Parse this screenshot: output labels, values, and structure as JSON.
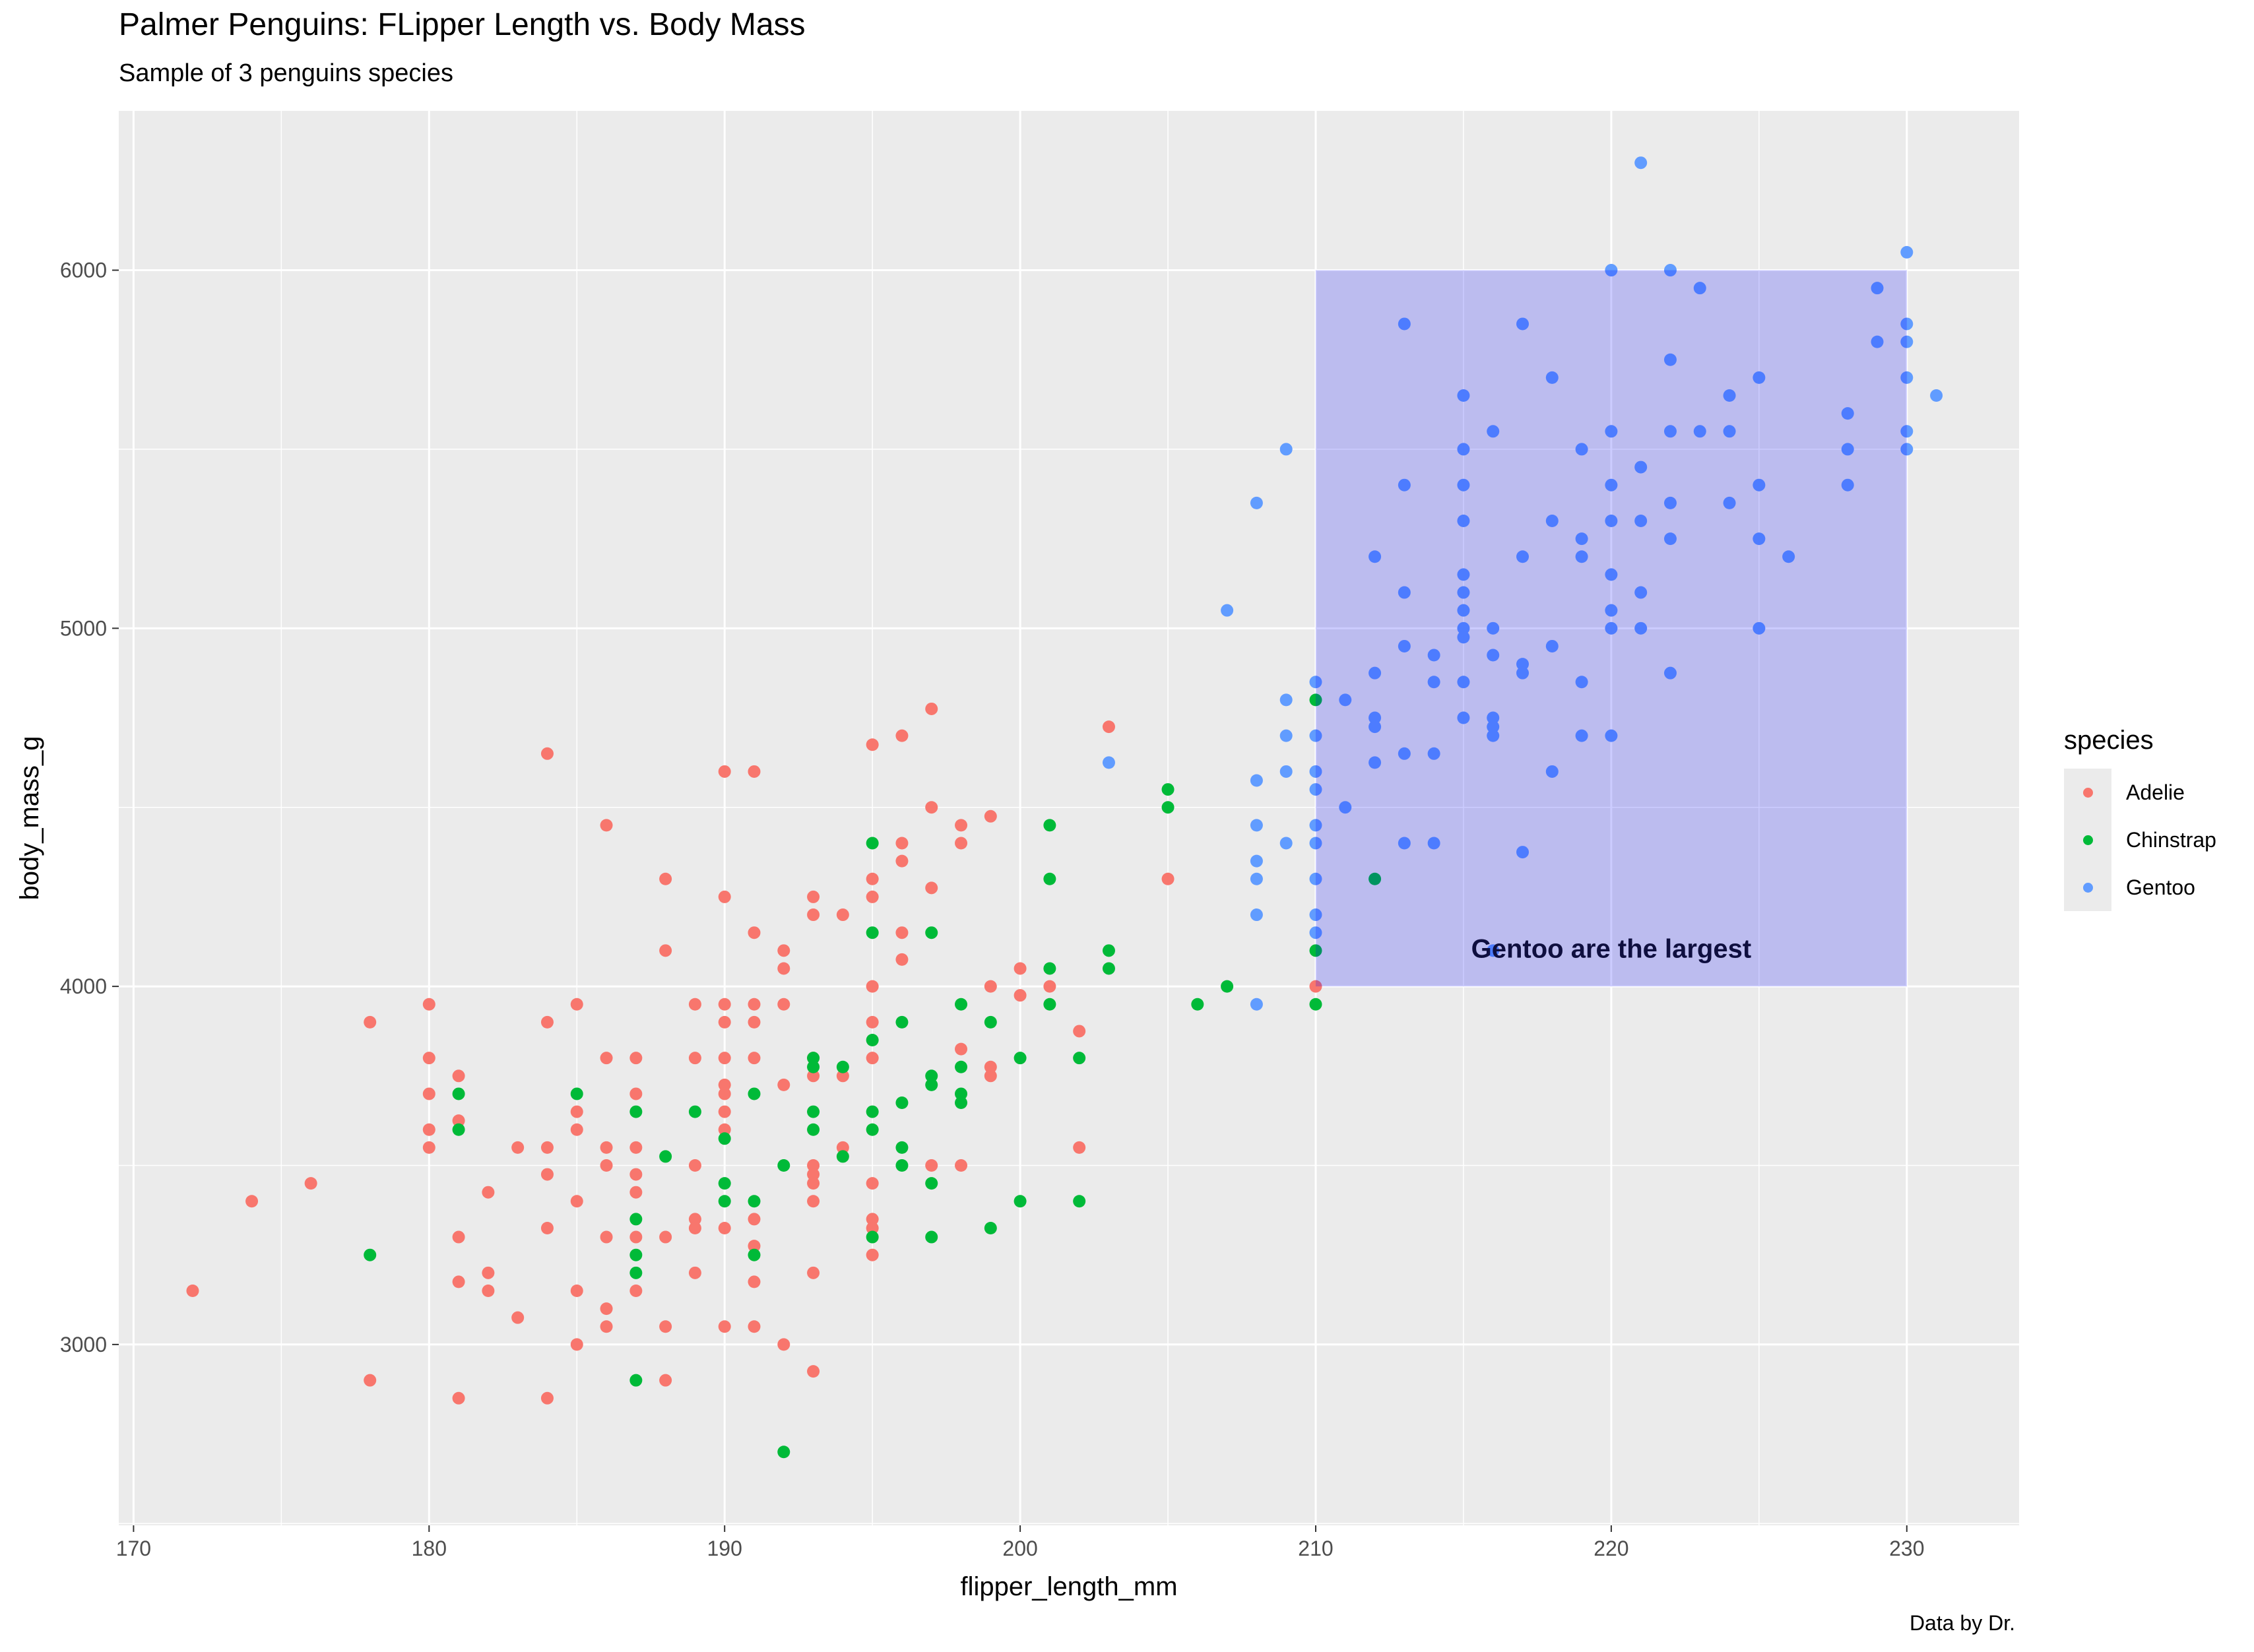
{
  "chart_data": {
    "type": "scatter",
    "title": "Palmer Penguins: FLipper Length vs. Body Mass",
    "subtitle": "Sample of 3 penguins species",
    "caption": "Data by Dr.",
    "xlabel": "flipper_length_mm",
    "ylabel": "body_mass_g",
    "xlim": [
      169.5,
      233.8
    ],
    "ylim": [
      2495,
      6445
    ],
    "x_ticks": [
      170,
      180,
      190,
      200,
      210,
      220,
      230
    ],
    "y_ticks": [
      3000,
      4000,
      5000,
      6000
    ],
    "grid": true,
    "legend": {
      "title": "species",
      "position": "right"
    },
    "annotation": {
      "text": "Gentoo are the largest",
      "x": 220,
      "y": 4100,
      "rect": {
        "x": [
          210,
          230
        ],
        "y": [
          4000,
          6000
        ],
        "fill": "#0000ff",
        "alpha": 0.2
      }
    },
    "series": [
      {
        "name": "Adelie",
        "color": "#F8766D",
        "points": [
          [
            172,
            3150
          ],
          [
            174,
            3400
          ],
          [
            176,
            3450
          ],
          [
            178,
            3900
          ],
          [
            178,
            2900
          ],
          [
            180,
            3950
          ],
          [
            180,
            3800
          ],
          [
            180,
            3700
          ],
          [
            180,
            3600
          ],
          [
            180,
            3550
          ],
          [
            181,
            3750
          ],
          [
            181,
            3625
          ],
          [
            181,
            3300
          ],
          [
            181,
            3175
          ],
          [
            181,
            2850
          ],
          [
            182,
            3425
          ],
          [
            182,
            3200
          ],
          [
            182,
            3150
          ],
          [
            183,
            3550
          ],
          [
            183,
            3075
          ],
          [
            184,
            4650
          ],
          [
            184,
            3900
          ],
          [
            184,
            3550
          ],
          [
            184,
            3475
          ],
          [
            184,
            3325
          ],
          [
            184,
            2850
          ],
          [
            185,
            3950
          ],
          [
            185,
            3650
          ],
          [
            185,
            3600
          ],
          [
            185,
            3400
          ],
          [
            185,
            3150
          ],
          [
            185,
            3000
          ],
          [
            186,
            4450
          ],
          [
            186,
            3800
          ],
          [
            186,
            3550
          ],
          [
            186,
            3500
          ],
          [
            186,
            3300
          ],
          [
            186,
            3100
          ],
          [
            186,
            3050
          ],
          [
            187,
            3800
          ],
          [
            187,
            3700
          ],
          [
            187,
            3550
          ],
          [
            187,
            3475
          ],
          [
            187,
            3425
          ],
          [
            187,
            3300
          ],
          [
            187,
            3150
          ],
          [
            188,
            4300
          ],
          [
            188,
            4100
          ],
          [
            188,
            3300
          ],
          [
            188,
            3050
          ],
          [
            188,
            2900
          ],
          [
            189,
            3950
          ],
          [
            189,
            3800
          ],
          [
            189,
            3500
          ],
          [
            189,
            3350
          ],
          [
            189,
            3325
          ],
          [
            189,
            3200
          ],
          [
            190,
            4600
          ],
          [
            190,
            4250
          ],
          [
            190,
            3950
          ],
          [
            190,
            3900
          ],
          [
            190,
            3800
          ],
          [
            190,
            3725
          ],
          [
            190,
            3700
          ],
          [
            190,
            3650
          ],
          [
            190,
            3600
          ],
          [
            190,
            3325
          ],
          [
            190,
            3050
          ],
          [
            191,
            4600
          ],
          [
            191,
            4150
          ],
          [
            191,
            3950
          ],
          [
            191,
            3900
          ],
          [
            191,
            3800
          ],
          [
            191,
            3350
          ],
          [
            191,
            3275
          ],
          [
            191,
            3175
          ],
          [
            191,
            3050
          ],
          [
            192,
            4100
          ],
          [
            192,
            4050
          ],
          [
            192,
            3950
          ],
          [
            192,
            3725
          ],
          [
            192,
            3000
          ],
          [
            193,
            4250
          ],
          [
            193,
            4200
          ],
          [
            193,
            3800
          ],
          [
            193,
            3750
          ],
          [
            193,
            3500
          ],
          [
            193,
            3475
          ],
          [
            193,
            3450
          ],
          [
            193,
            3400
          ],
          [
            193,
            3200
          ],
          [
            193,
            2925
          ],
          [
            194,
            4200
          ],
          [
            194,
            3750
          ],
          [
            194,
            3550
          ],
          [
            195,
            4675
          ],
          [
            195,
            4300
          ],
          [
            195,
            4250
          ],
          [
            195,
            4000
          ],
          [
            195,
            3900
          ],
          [
            195,
            3800
          ],
          [
            195,
            3450
          ],
          [
            195,
            3350
          ],
          [
            195,
            3325
          ],
          [
            195,
            3250
          ],
          [
            196,
            4700
          ],
          [
            196,
            4400
          ],
          [
            196,
            4350
          ],
          [
            196,
            4150
          ],
          [
            196,
            4075
          ],
          [
            197,
            4775
          ],
          [
            197,
            4500
          ],
          [
            197,
            4275
          ],
          [
            197,
            3500
          ],
          [
            198,
            4450
          ],
          [
            198,
            4400
          ],
          [
            198,
            3825
          ],
          [
            198,
            3500
          ],
          [
            199,
            4475
          ],
          [
            199,
            4000
          ],
          [
            199,
            3775
          ],
          [
            199,
            3750
          ],
          [
            200,
            4050
          ],
          [
            200,
            3975
          ],
          [
            201,
            4000
          ],
          [
            202,
            3875
          ],
          [
            202,
            3550
          ],
          [
            203,
            4725
          ],
          [
            205,
            4300
          ],
          [
            210,
            4000
          ]
        ]
      },
      {
        "name": "Chinstrap",
        "color": "#00BA38",
        "points": [
          [
            178,
            3250
          ],
          [
            181,
            3700
          ],
          [
            181,
            3600
          ],
          [
            185,
            3700
          ],
          [
            187,
            3650
          ],
          [
            187,
            3350
          ],
          [
            187,
            3250
          ],
          [
            187,
            3200
          ],
          [
            187,
            2900
          ],
          [
            188,
            3525
          ],
          [
            189,
            3650
          ],
          [
            190,
            3575
          ],
          [
            190,
            3450
          ],
          [
            190,
            3400
          ],
          [
            191,
            3700
          ],
          [
            191,
            3400
          ],
          [
            191,
            3250
          ],
          [
            192,
            3500
          ],
          [
            192,
            2700
          ],
          [
            193,
            3800
          ],
          [
            193,
            3775
          ],
          [
            193,
            3650
          ],
          [
            193,
            3600
          ],
          [
            194,
            3775
          ],
          [
            194,
            3525
          ],
          [
            195,
            4400
          ],
          [
            195,
            4150
          ],
          [
            195,
            3850
          ],
          [
            195,
            3650
          ],
          [
            195,
            3600
          ],
          [
            195,
            3300
          ],
          [
            196,
            3900
          ],
          [
            196,
            3675
          ],
          [
            196,
            3550
          ],
          [
            196,
            3500
          ],
          [
            197,
            4150
          ],
          [
            197,
            3750
          ],
          [
            197,
            3725
          ],
          [
            197,
            3450
          ],
          [
            197,
            3300
          ],
          [
            198,
            3950
          ],
          [
            198,
            3775
          ],
          [
            198,
            3700
          ],
          [
            198,
            3675
          ],
          [
            199,
            3900
          ],
          [
            199,
            3325
          ],
          [
            200,
            3800
          ],
          [
            200,
            3400
          ],
          [
            201,
            4450
          ],
          [
            201,
            4300
          ],
          [
            201,
            4050
          ],
          [
            201,
            3950
          ],
          [
            202,
            3800
          ],
          [
            202,
            3400
          ],
          [
            203,
            4100
          ],
          [
            203,
            4050
          ],
          [
            205,
            4550
          ],
          [
            205,
            4500
          ],
          [
            206,
            3950
          ],
          [
            207,
            4000
          ],
          [
            210,
            4800
          ],
          [
            210,
            4100
          ],
          [
            210,
            3950
          ],
          [
            212,
            4300
          ]
        ]
      },
      {
        "name": "Gentoo",
        "color": "#619CFF",
        "points": [
          [
            203,
            4625
          ],
          [
            207,
            5050
          ],
          [
            208,
            5350
          ],
          [
            208,
            4575
          ],
          [
            208,
            4450
          ],
          [
            208,
            4350
          ],
          [
            208,
            4300
          ],
          [
            208,
            4200
          ],
          [
            208,
            3950
          ],
          [
            209,
            5500
          ],
          [
            209,
            4800
          ],
          [
            209,
            4700
          ],
          [
            209,
            4600
          ],
          [
            209,
            4400
          ],
          [
            210,
            4850
          ],
          [
            210,
            4700
          ],
          [
            210,
            4600
          ],
          [
            210,
            4550
          ],
          [
            210,
            4450
          ],
          [
            210,
            4400
          ],
          [
            210,
            4300
          ],
          [
            210,
            4200
          ],
          [
            210,
            4150
          ],
          [
            211,
            4800
          ],
          [
            211,
            4500
          ],
          [
            212,
            5200
          ],
          [
            212,
            4875
          ],
          [
            212,
            4750
          ],
          [
            212,
            4725
          ],
          [
            212,
            4625
          ],
          [
            213,
            5850
          ],
          [
            213,
            5400
          ],
          [
            213,
            5100
          ],
          [
            213,
            4950
          ],
          [
            213,
            4650
          ],
          [
            213,
            4400
          ],
          [
            214,
            4925
          ],
          [
            214,
            4850
          ],
          [
            214,
            4650
          ],
          [
            214,
            4400
          ],
          [
            215,
            5650
          ],
          [
            215,
            5500
          ],
          [
            215,
            5400
          ],
          [
            215,
            5300
          ],
          [
            215,
            5150
          ],
          [
            215,
            5100
          ],
          [
            215,
            5050
          ],
          [
            215,
            5000
          ],
          [
            215,
            4975
          ],
          [
            215,
            4850
          ],
          [
            215,
            4750
          ],
          [
            216,
            5550
          ],
          [
            216,
            5000
          ],
          [
            216,
            4925
          ],
          [
            216,
            4750
          ],
          [
            216,
            4725
          ],
          [
            216,
            4700
          ],
          [
            216,
            4100
          ],
          [
            217,
            5850
          ],
          [
            217,
            5200
          ],
          [
            217,
            4900
          ],
          [
            217,
            4875
          ],
          [
            217,
            4375
          ],
          [
            218,
            5700
          ],
          [
            218,
            5300
          ],
          [
            218,
            4950
          ],
          [
            218,
            4600
          ],
          [
            219,
            5500
          ],
          [
            219,
            5250
          ],
          [
            219,
            5200
          ],
          [
            219,
            4850
          ],
          [
            219,
            4700
          ],
          [
            220,
            6000
          ],
          [
            220,
            5550
          ],
          [
            220,
            5400
          ],
          [
            220,
            5300
          ],
          [
            220,
            5150
          ],
          [
            220,
            5050
          ],
          [
            220,
            5000
          ],
          [
            220,
            4700
          ],
          [
            221,
            6300
          ],
          [
            221,
            5450
          ],
          [
            221,
            5300
          ],
          [
            221,
            5100
          ],
          [
            221,
            5000
          ],
          [
            222,
            6000
          ],
          [
            222,
            5750
          ],
          [
            222,
            5550
          ],
          [
            222,
            5350
          ],
          [
            222,
            5250
          ],
          [
            222,
            4875
          ],
          [
            223,
            5950
          ],
          [
            223,
            5550
          ],
          [
            224,
            5650
          ],
          [
            224,
            5550
          ],
          [
            224,
            5350
          ],
          [
            225,
            5700
          ],
          [
            225,
            5400
          ],
          [
            225,
            5250
          ],
          [
            225,
            5000
          ],
          [
            226,
            5200
          ],
          [
            228,
            5600
          ],
          [
            228,
            5500
          ],
          [
            228,
            5400
          ],
          [
            229,
            5950
          ],
          [
            229,
            5800
          ],
          [
            230,
            6050
          ],
          [
            230,
            5850
          ],
          [
            230,
            5800
          ],
          [
            230,
            5700
          ],
          [
            230,
            5550
          ],
          [
            230,
            5500
          ],
          [
            231,
            5650
          ]
        ]
      }
    ]
  }
}
